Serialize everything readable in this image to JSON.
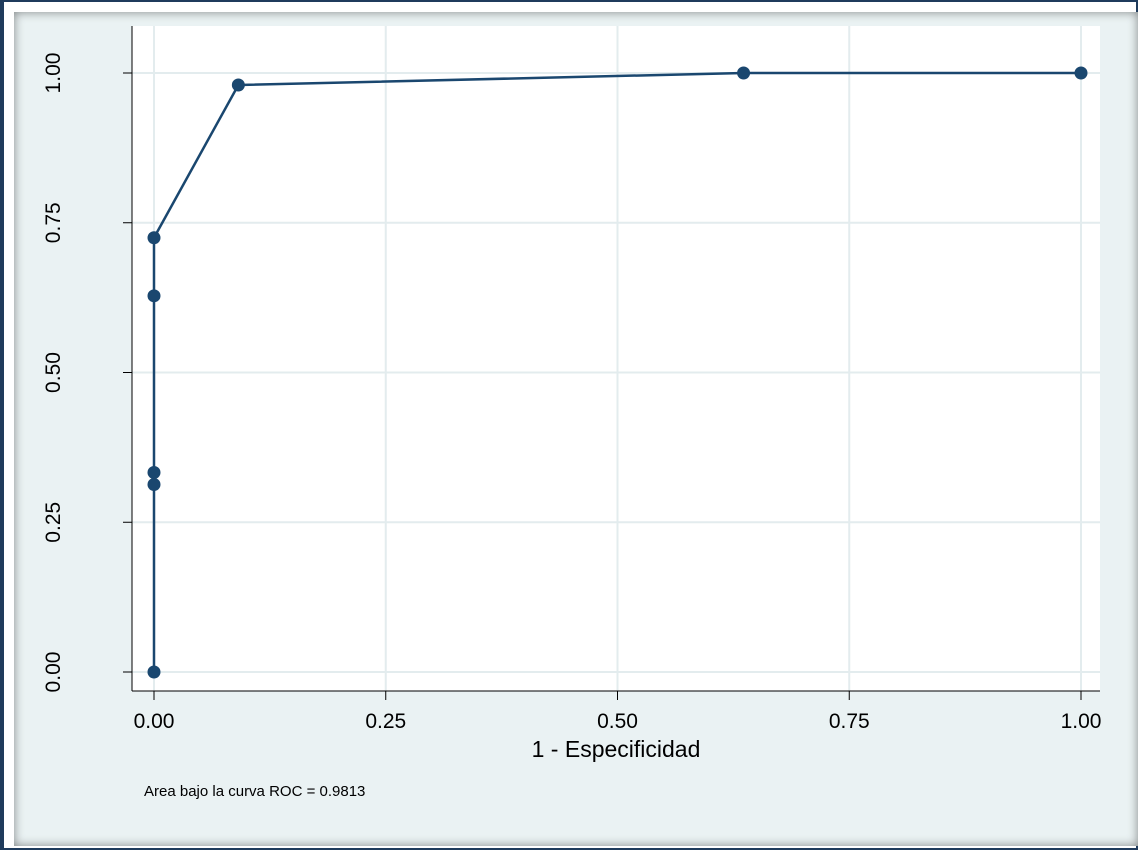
{
  "chart_data": {
    "type": "line",
    "title": "",
    "xlabel": "1 - Especificidad",
    "ylabel": "",
    "xlim": [
      0,
      1
    ],
    "ylim": [
      0,
      1
    ],
    "x_ticks": [
      "0.00",
      "0.25",
      "0.50",
      "0.75",
      "1.00"
    ],
    "y_ticks": [
      "0.00",
      "0.25",
      "0.50",
      "0.75",
      "1.00"
    ],
    "grid": true,
    "series": [
      {
        "x": [
          0,
          0,
          0,
          0,
          0,
          0.091,
          0.636,
          1.0
        ],
        "y": [
          0,
          0.313,
          0.333,
          0.628,
          0.725,
          0.98,
          1.0,
          1.0
        ],
        "color": "#1a476f"
      }
    ],
    "annotation": "Area bajo la curva ROC  = 0.9813"
  },
  "colors": {
    "background": "#eaf2f3",
    "plot_area": "#ffffff",
    "grid": "#e3ecee",
    "series": "#1a476f",
    "frame": "#1f3b5c"
  }
}
